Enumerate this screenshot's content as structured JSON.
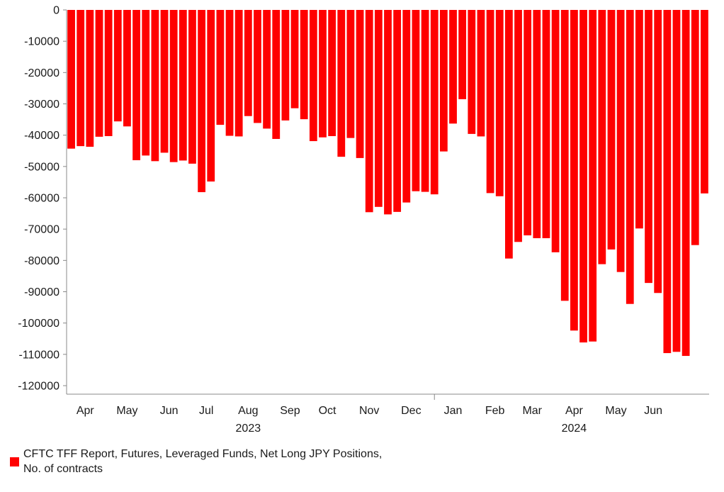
{
  "chart_data": {
    "type": "bar",
    "series": [
      {
        "name": "CFTC TFF Report, Futures, Leveraged Funds, Net Long JPY Positions, No. of contracts",
        "color": "#ff0000",
        "values": [
          -44300,
          -43500,
          -43700,
          -40500,
          -40300,
          -35600,
          -37200,
          -48000,
          -46500,
          -48300,
          -45600,
          -48600,
          -48100,
          -49100,
          -58200,
          -54800,
          -36700,
          -40200,
          -40400,
          -33900,
          -36100,
          -37900,
          -41200,
          -35300,
          -31400,
          -34900,
          -41900,
          -40700,
          -40300,
          -46900,
          -40900,
          -47300,
          -64600,
          -62900,
          -65300,
          -64500,
          -61500,
          -57900,
          -58100,
          -58900,
          -45200,
          -36300,
          -28500,
          -39600,
          -40400,
          -58500,
          -59500,
          -79400,
          -74100,
          -72000,
          -72900,
          -72900,
          -77400,
          -92900,
          -102400,
          -106200,
          -105900,
          -81200,
          -76500,
          -83700,
          -93900,
          -69800,
          -87200,
          -90400,
          -109600,
          -109200,
          -110500,
          -75100,
          -58600
        ]
      }
    ],
    "yaxis": {
      "min": -120000,
      "max": 0,
      "step": 10000,
      "tick_labels": [
        "0",
        "-10000",
        "-20000",
        "-30000",
        "-40000",
        "-50000",
        "-60000",
        "-70000",
        "-80000",
        "-90000",
        "-100000",
        "-110000",
        "-120000"
      ]
    },
    "xaxis": {
      "month_labels": [
        {
          "label": "Apr",
          "bar": 1.5
        },
        {
          "label": "May",
          "bar": 6
        },
        {
          "label": "Jun",
          "bar": 10.5
        },
        {
          "label": "Jul",
          "bar": 14.5
        },
        {
          "label": "Aug",
          "bar": 19
        },
        {
          "label": "Sep",
          "bar": 23.5
        },
        {
          "label": "Oct",
          "bar": 27.5
        },
        {
          "label": "Nov",
          "bar": 32
        },
        {
          "label": "Dec",
          "bar": 36.5
        },
        {
          "label": "Jan",
          "bar": 41
        },
        {
          "label": "Feb",
          "bar": 45.5
        },
        {
          "label": "Mar",
          "bar": 49.5
        },
        {
          "label": "Apr",
          "bar": 54
        },
        {
          "label": "May",
          "bar": 58.5
        },
        {
          "label": "Jun",
          "bar": 62.5
        }
      ],
      "year_labels": [
        {
          "label": "2023",
          "bar": 19
        },
        {
          "label": "2024",
          "bar": 54
        }
      ],
      "year_divider_bar": 39.5
    },
    "legend_position": "bottom-left",
    "grid": false
  }
}
